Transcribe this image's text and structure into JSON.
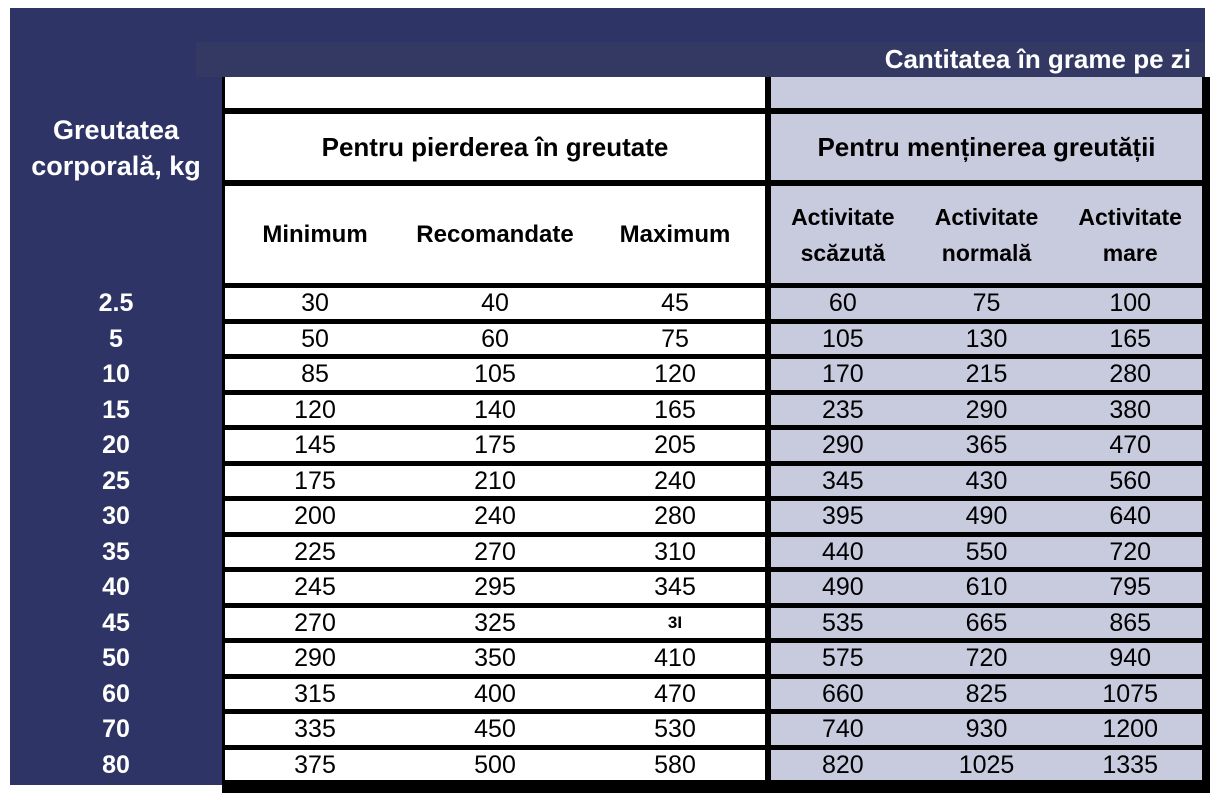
{
  "title": "Cantitatea în grame pe zi",
  "row_header": "Greutatea corporală, kg",
  "sections": {
    "loss": {
      "label": "Pentru pierderea în greutate",
      "columns": [
        "Minimum",
        "Recomandate",
        "Maximum"
      ]
    },
    "maintain": {
      "label": "Pentru menținerea greutății",
      "columns": [
        "Activitate scăzută",
        "Activitate normală",
        "Activitate mare"
      ]
    }
  },
  "rows": [
    {
      "weight": "2.5",
      "loss": [
        "30",
        "40",
        "45"
      ],
      "maintain": [
        "60",
        "75",
        "100"
      ]
    },
    {
      "weight": "5",
      "loss": [
        "50",
        "60",
        "75"
      ],
      "maintain": [
        "105",
        "130",
        "165"
      ]
    },
    {
      "weight": "10",
      "loss": [
        "85",
        "105",
        "120"
      ],
      "maintain": [
        "170",
        "215",
        "280"
      ]
    },
    {
      "weight": "15",
      "loss": [
        "120",
        "140",
        "165"
      ],
      "maintain": [
        "235",
        "290",
        "380"
      ]
    },
    {
      "weight": "20",
      "loss": [
        "145",
        "175",
        "205"
      ],
      "maintain": [
        "290",
        "365",
        "470"
      ]
    },
    {
      "weight": "25",
      "loss": [
        "175",
        "210",
        "240"
      ],
      "maintain": [
        "345",
        "430",
        "560"
      ]
    },
    {
      "weight": "30",
      "loss": [
        "200",
        "240",
        "280"
      ],
      "maintain": [
        "395",
        "490",
        "640"
      ]
    },
    {
      "weight": "35",
      "loss": [
        "225",
        "270",
        "310"
      ],
      "maintain": [
        "440",
        "550",
        "720"
      ]
    },
    {
      "weight": "40",
      "loss": [
        "245",
        "295",
        "345"
      ],
      "maintain": [
        "490",
        "610",
        "795"
      ]
    },
    {
      "weight": "45",
      "loss": [
        "270",
        "325",
        "3I"
      ],
      "maintain": [
        "535",
        "665",
        "865"
      ]
    },
    {
      "weight": "50",
      "loss": [
        "290",
        "350",
        "410"
      ],
      "maintain": [
        "575",
        "720",
        "940"
      ]
    },
    {
      "weight": "60",
      "loss": [
        "315",
        "400",
        "470"
      ],
      "maintain": [
        "660",
        "825",
        "1075"
      ]
    },
    {
      "weight": "70",
      "loss": [
        "335",
        "450",
        "530"
      ],
      "maintain": [
        "740",
        "930",
        "1200"
      ]
    },
    {
      "weight": "80",
      "loss": [
        "375",
        "500",
        "580"
      ],
      "maintain": [
        "820",
        "1025",
        "1335"
      ]
    }
  ],
  "colors": {
    "navy": "#2e3465",
    "band": "#333963",
    "lavender": "#c8cade",
    "border": "#000000"
  }
}
